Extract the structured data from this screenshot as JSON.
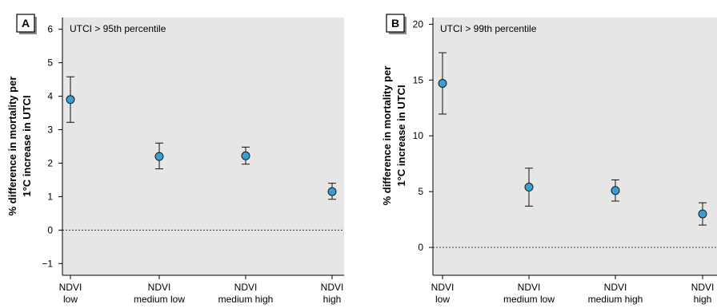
{
  "chart_data": [
    {
      "panel_label": "A",
      "type": "scatter",
      "annotation": "UTCI > 95th percentile",
      "ylabel_lines": [
        "% difference in mortality per",
        "1°C increase in UTCI"
      ],
      "categories": [
        [
          "NDVI",
          "low"
        ],
        [
          "NDVI",
          "medium low"
        ],
        [
          "NDVI",
          "medium high"
        ],
        [
          "NDVI",
          "high"
        ]
      ],
      "values": [
        3.9,
        2.2,
        2.22,
        1.15
      ],
      "ci_low": [
        3.22,
        1.83,
        1.97,
        0.92
      ],
      "ci_high": [
        4.58,
        2.6,
        2.48,
        1.4
      ],
      "ylim": [
        -1.35,
        6.35
      ],
      "yticks": [
        -1,
        0,
        1,
        2,
        3,
        4,
        5,
        6
      ],
      "ytick_labels": [
        "−1",
        "0",
        "1",
        "2",
        "3",
        "4",
        "5",
        "6"
      ],
      "reference_line": 0,
      "grid": false
    },
    {
      "panel_label": "B",
      "type": "scatter",
      "annotation": "UTCI > 99th percentile",
      "ylabel_lines": [
        "% difference in mortality per",
        "1°C increase in UTCI"
      ],
      "categories": [
        [
          "NDVI",
          "low"
        ],
        [
          "NDVI",
          "medium low"
        ],
        [
          "NDVI",
          "medium high"
        ],
        [
          "NDVI",
          "high"
        ]
      ],
      "values": [
        14.7,
        5.4,
        5.1,
        3.0
      ],
      "ci_low": [
        11.95,
        3.7,
        4.15,
        2.0
      ],
      "ci_high": [
        17.45,
        7.1,
        6.05,
        4.0
      ],
      "ylim": [
        -2.5,
        20.6
      ],
      "yticks": [
        0,
        5,
        10,
        15,
        20
      ],
      "ytick_labels": [
        "0",
        "5",
        "10",
        "15",
        "20"
      ],
      "reference_line": 0,
      "grid": false
    }
  ],
  "colors": {
    "plot_background": "#e6e6e6",
    "marker_fill": "#3a9fd0",
    "marker_stroke": "#1a1a1a",
    "axis": "#000000"
  }
}
